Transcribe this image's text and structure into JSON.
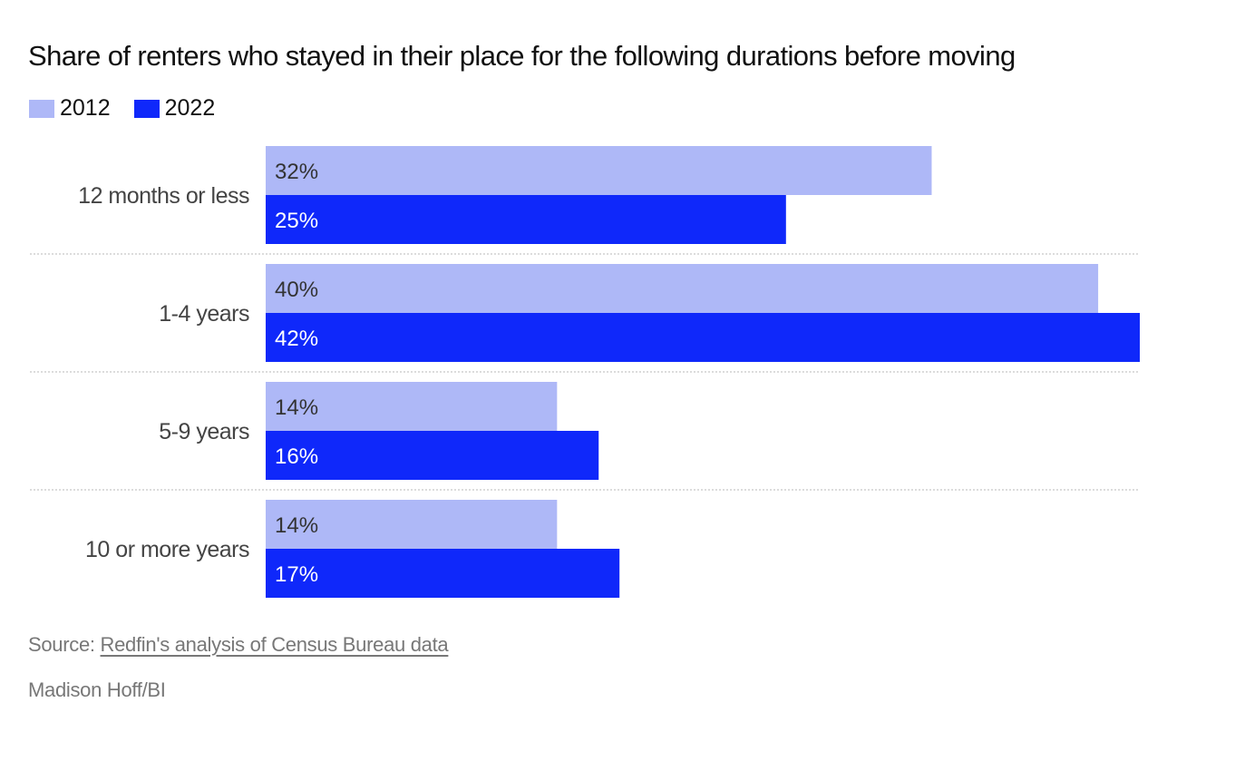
{
  "chart_data": {
    "type": "bar",
    "orientation": "horizontal",
    "title": "Share of renters who stayed in their place for the following durations before moving",
    "categories": [
      "12 months or less",
      "1-4 years",
      "5-9 years",
      "10 or more years"
    ],
    "series": [
      {
        "name": "2012",
        "color": "#aeb8f7",
        "values": [
          32,
          40,
          14,
          14
        ],
        "labels": [
          "32%",
          "40%",
          "14%",
          "14%"
        ]
      },
      {
        "name": "2022",
        "color": "#0f28fa",
        "values": [
          25,
          42,
          16,
          17
        ],
        "labels": [
          "25%",
          "42%",
          "16%",
          "17%"
        ]
      }
    ],
    "xlim": [
      0,
      42
    ],
    "legend": "top-left",
    "grid": false
  },
  "footer": {
    "source_prefix": "Source:",
    "source_link": "Redfin's analysis of Census Bureau data",
    "credit": "Madison Hoff/BI"
  }
}
